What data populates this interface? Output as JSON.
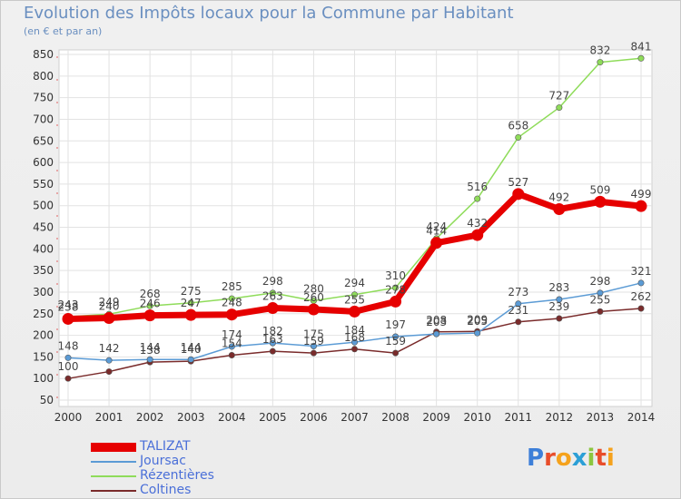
{
  "title": "Evolution des Impôts locaux pour la Commune par Habitant",
  "subtitle": "(en € et par an)",
  "brand": {
    "letters": [
      "P",
      "r",
      "o",
      "x",
      "i",
      "t",
      "i"
    ],
    "colors": [
      "#3d7fd8",
      "#e84d2a",
      "#f5a21c",
      "#2c9fd6",
      "#8cc63f",
      "#e84d2a",
      "#f5a21c"
    ]
  },
  "chart_data": {
    "type": "line",
    "x": [
      "2000",
      "2001",
      "2002",
      "2003",
      "2004",
      "2005",
      "2006",
      "2007",
      "2008",
      "2009",
      "2010",
      "2011",
      "2012",
      "2013",
      "2014"
    ],
    "yticks": [
      "50",
      "100",
      "150",
      "200",
      "250",
      "300",
      "350",
      "400",
      "450",
      "500",
      "550",
      "600",
      "650",
      "700",
      "750",
      "800",
      "850"
    ],
    "ylim": [
      50,
      860
    ],
    "grid": true,
    "legend_position": "bottom-left",
    "series": [
      {
        "name": "Coltines",
        "color": "#7a2b2b",
        "width": 1.5,
        "values": [
          100,
          116,
          138,
          140,
          154,
          163,
          159,
          168,
          159,
          208,
          209,
          231,
          239,
          255,
          262
        ],
        "labels": [
          "100",
          "",
          "138",
          "140",
          "154",
          "163",
          "159",
          "168",
          "159",
          "208",
          "209",
          "231",
          "239",
          "255",
          "262"
        ]
      },
      {
        "name": "Joursac",
        "color": "#5b9bd5",
        "width": 1.5,
        "values": [
          148,
          142,
          144,
          144,
          174,
          182,
          175,
          184,
          197,
          203,
          205,
          273,
          283,
          298,
          321
        ],
        "labels": [
          "148",
          "142",
          "144",
          "144",
          "174",
          "182",
          "175",
          "184",
          "197",
          "203",
          "205",
          "273",
          "283",
          "298",
          "321"
        ]
      },
      {
        "name": "Rézentières",
        "color": "#8fdc5a",
        "width": 1.5,
        "values": [
          243,
          249,
          268,
          275,
          285,
          298,
          280,
          294,
          310,
          424,
          516,
          658,
          727,
          832,
          841
        ],
        "labels": [
          "243",
          "249",
          "268",
          "275",
          "285",
          "298",
          "280",
          "294",
          "310",
          "424",
          "516",
          "658",
          "727",
          "832",
          "841"
        ]
      },
      {
        "name": "TALIZAT",
        "color": "#e60000",
        "width": 7,
        "values": [
          238,
          240,
          246,
          247,
          248,
          263,
          260,
          255,
          278,
          414,
          432,
          527,
          492,
          509,
          499
        ],
        "labels": [
          "238",
          "240",
          "246",
          "247",
          "248",
          "263",
          "260",
          "255",
          "278",
          "414",
          "432",
          "527",
          "492",
          "509",
          "499"
        ]
      }
    ],
    "legend_order": [
      "TALIZAT",
      "Joursac",
      "Rézentières",
      "Coltines"
    ]
  }
}
